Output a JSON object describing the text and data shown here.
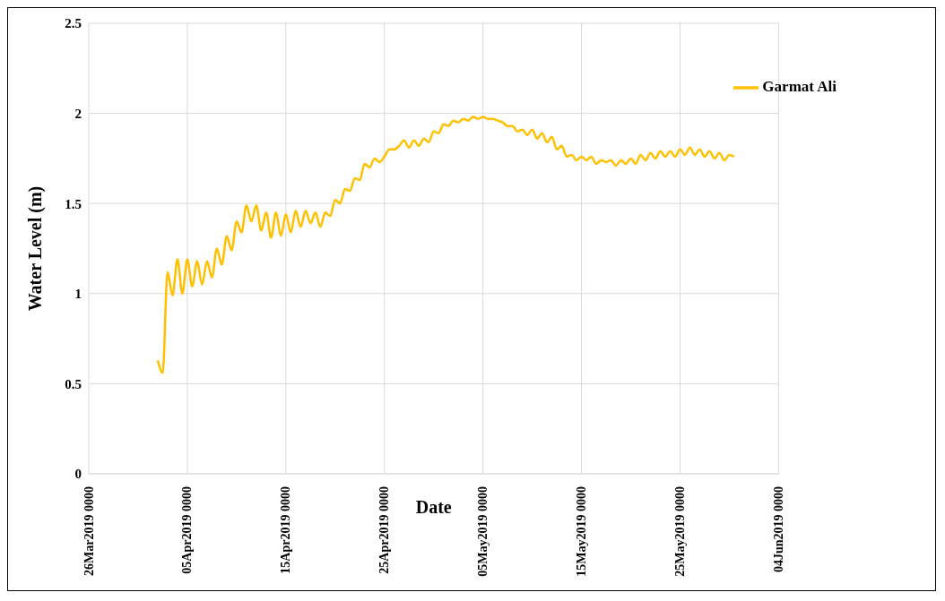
{
  "chart_data": {
    "type": "line",
    "xlabel": "Date",
    "ylabel": "Water Level (m)",
    "x": [
      "2019-04-02T00:00",
      "2019-04-02T12:00",
      "2019-04-03T00:00",
      "2019-04-03T12:00",
      "2019-04-04T00:00",
      "2019-04-04T12:00",
      "2019-04-05T00:00",
      "2019-04-05T12:00",
      "2019-04-06T00:00",
      "2019-04-06T12:00",
      "2019-04-07T00:00",
      "2019-04-07T12:00",
      "2019-04-08T00:00",
      "2019-04-08T12:00",
      "2019-04-09T00:00",
      "2019-04-09T12:00",
      "2019-04-10T00:00",
      "2019-04-10T12:00",
      "2019-04-11T00:00",
      "2019-04-11T12:00",
      "2019-04-12T00:00",
      "2019-04-12T12:00",
      "2019-04-13T00:00",
      "2019-04-13T12:00",
      "2019-04-14T00:00",
      "2019-04-14T12:00",
      "2019-04-15T00:00",
      "2019-04-15T12:00",
      "2019-04-16T00:00",
      "2019-04-16T12:00",
      "2019-04-17T00:00",
      "2019-04-17T12:00",
      "2019-04-18T00:00",
      "2019-04-18T12:00",
      "2019-04-19T00:00",
      "2019-04-19T12:00",
      "2019-04-20T00:00",
      "2019-04-20T12:00",
      "2019-04-21T00:00",
      "2019-04-21T12:00",
      "2019-04-22T00:00",
      "2019-04-22T12:00",
      "2019-04-23T00:00",
      "2019-04-23T12:00",
      "2019-04-24T00:00",
      "2019-04-24T12:00",
      "2019-04-25T00:00",
      "2019-04-25T12:00",
      "2019-04-26T00:00",
      "2019-04-26T12:00",
      "2019-04-27T00:00",
      "2019-04-27T12:00",
      "2019-04-28T00:00",
      "2019-04-28T12:00",
      "2019-04-29T00:00",
      "2019-04-29T12:00",
      "2019-04-30T00:00",
      "2019-04-30T12:00",
      "2019-05-01T00:00",
      "2019-05-01T12:00",
      "2019-05-02T00:00",
      "2019-05-02T12:00",
      "2019-05-03T00:00",
      "2019-05-03T12:00",
      "2019-05-04T00:00",
      "2019-05-04T12:00",
      "2019-05-05T00:00",
      "2019-05-05T12:00",
      "2019-05-06T00:00",
      "2019-05-06T12:00",
      "2019-05-07T00:00",
      "2019-05-07T12:00",
      "2019-05-08T00:00",
      "2019-05-08T12:00",
      "2019-05-09T00:00",
      "2019-05-09T12:00",
      "2019-05-10T00:00",
      "2019-05-10T12:00",
      "2019-05-11T00:00",
      "2019-05-11T12:00",
      "2019-05-12T00:00",
      "2019-05-12T12:00",
      "2019-05-13T00:00",
      "2019-05-13T12:00",
      "2019-05-14T00:00",
      "2019-05-14T12:00",
      "2019-05-15T00:00",
      "2019-05-15T12:00",
      "2019-05-16T00:00",
      "2019-05-16T12:00",
      "2019-05-17T00:00",
      "2019-05-17T12:00",
      "2019-05-18T00:00",
      "2019-05-18T12:00",
      "2019-05-19T00:00",
      "2019-05-19T12:00",
      "2019-05-20T00:00",
      "2019-05-20T12:00",
      "2019-05-21T00:00",
      "2019-05-21T12:00",
      "2019-05-22T00:00",
      "2019-05-22T12:00",
      "2019-05-23T00:00",
      "2019-05-23T12:00",
      "2019-05-24T00:00",
      "2019-05-24T12:00",
      "2019-05-25T00:00",
      "2019-05-25T12:00",
      "2019-05-26T00:00",
      "2019-05-26T12:00",
      "2019-05-27T00:00",
      "2019-05-27T12:00",
      "2019-05-28T00:00",
      "2019-05-28T12:00",
      "2019-05-29T00:00",
      "2019-05-29T12:00",
      "2019-05-30T00:00",
      "2019-05-30T12:00"
    ],
    "series": [
      {
        "name": "Garmat Ali",
        "color": "#ffc000",
        "values": [
          0.63,
          0.56,
          1.12,
          0.99,
          1.19,
          1.0,
          1.19,
          1.04,
          1.18,
          1.05,
          1.18,
          1.09,
          1.25,
          1.16,
          1.32,
          1.24,
          1.4,
          1.34,
          1.49,
          1.4,
          1.49,
          1.35,
          1.45,
          1.31,
          1.45,
          1.32,
          1.44,
          1.34,
          1.46,
          1.37,
          1.46,
          1.39,
          1.45,
          1.37,
          1.45,
          1.43,
          1.52,
          1.5,
          1.58,
          1.57,
          1.64,
          1.63,
          1.72,
          1.7,
          1.75,
          1.73,
          1.76,
          1.8,
          1.8,
          1.82,
          1.85,
          1.81,
          1.85,
          1.82,
          1.86,
          1.84,
          1.9,
          1.89,
          1.94,
          1.93,
          1.96,
          1.95,
          1.97,
          1.96,
          1.98,
          1.97,
          1.98,
          1.97,
          1.97,
          1.96,
          1.95,
          1.93,
          1.93,
          1.9,
          1.91,
          1.88,
          1.91,
          1.86,
          1.89,
          1.84,
          1.87,
          1.8,
          1.82,
          1.76,
          1.77,
          1.74,
          1.76,
          1.74,
          1.76,
          1.72,
          1.74,
          1.73,
          1.74,
          1.71,
          1.74,
          1.72,
          1.75,
          1.72,
          1.77,
          1.74,
          1.78,
          1.75,
          1.79,
          1.76,
          1.79,
          1.76,
          1.8,
          1.77,
          1.81,
          1.77,
          1.8,
          1.76,
          1.79,
          1.75,
          1.78,
          1.74,
          1.77,
          1.76
        ]
      }
    ],
    "xlim": [
      "2019-03-26",
      "2019-06-04"
    ],
    "xticks": [
      {
        "value": "2019-03-26",
        "label": "26Mar2019  0000"
      },
      {
        "value": "2019-04-05",
        "label": "05Apr2019  0000"
      },
      {
        "value": "2019-04-15",
        "label": "15Apr2019  0000"
      },
      {
        "value": "2019-04-25",
        "label": "25Apr2019  0000"
      },
      {
        "value": "2019-05-05",
        "label": "05May2019  0000"
      },
      {
        "value": "2019-05-15",
        "label": "15May2019  0000"
      },
      {
        "value": "2019-05-25",
        "label": "25May2019  0000"
      },
      {
        "value": "2019-06-04",
        "label": "04Jun2019  0000"
      }
    ],
    "ylim": [
      0,
      2.5
    ],
    "yticks": [
      0,
      0.5,
      1,
      1.5,
      2,
      2.5
    ],
    "grid": true,
    "legend": "top right",
    "marker": "none",
    "line_style": "solid"
  }
}
